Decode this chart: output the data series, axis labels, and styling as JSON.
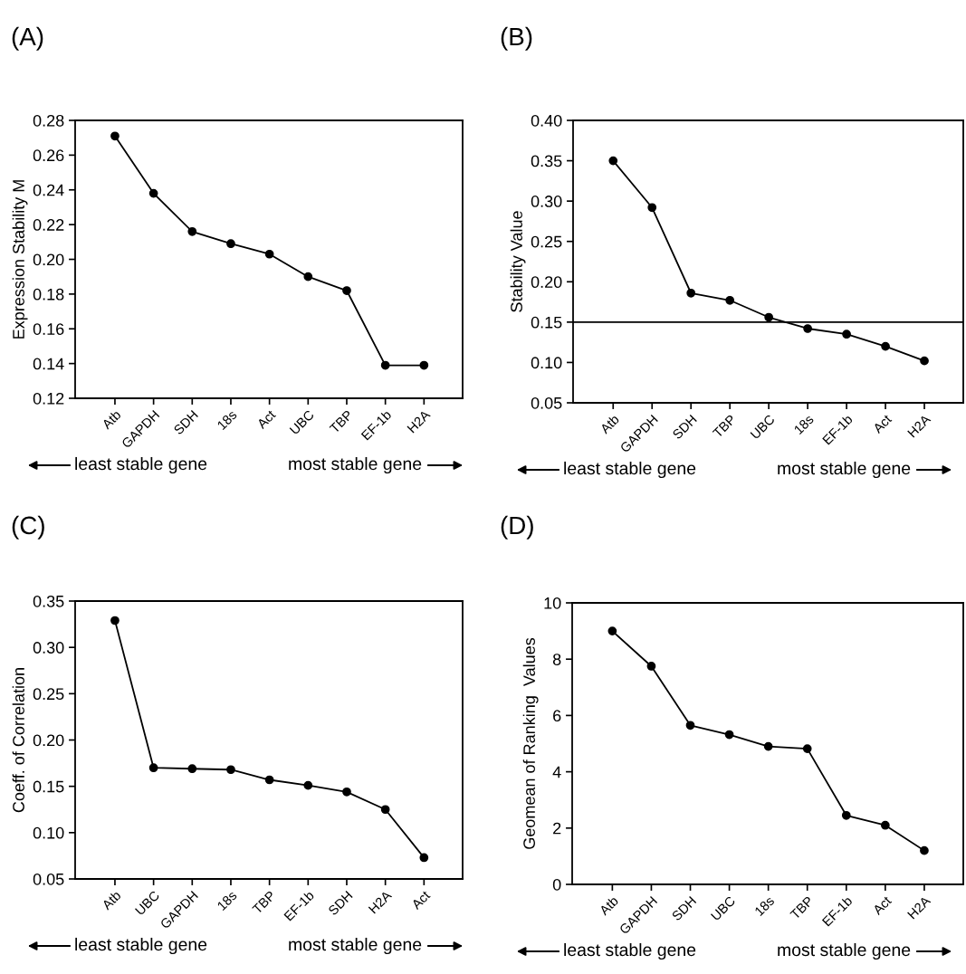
{
  "chart_data": [
    {
      "type": "line",
      "ylabel": "Expression Stability M",
      "annotations": [
        "(A)",
        "least stable gene",
        "most stable gene"
      ],
      "categories": [
        "Atb",
        "GAPDH",
        "SDH",
        "18s",
        "Act",
        "UBC",
        "TBP",
        "EF-1b",
        "H2A"
      ],
      "series": [
        {
          "color": "#000000",
          "values": [
            0.271,
            0.238,
            0.216,
            0.209,
            0.203,
            0.19,
            0.182,
            0.139,
            0.139
          ]
        }
      ],
      "ylim": [
        0.12,
        0.28
      ],
      "yticks": [
        {
          "value": 0.12,
          "label": "0.12"
        },
        {
          "value": 0.14,
          "label": "0.14"
        },
        {
          "value": 0.16,
          "label": "0.16"
        },
        {
          "value": 0.18,
          "label": "0.18"
        },
        {
          "value": 0.2,
          "label": "0.20"
        },
        {
          "value": 0.22,
          "label": "0.22"
        },
        {
          "value": 0.24,
          "label": "0.24"
        },
        {
          "value": 0.26,
          "label": "0.26"
        },
        {
          "value": 0.28,
          "label": "0.28"
        }
      ],
      "marker": "circle",
      "line_style": "solid",
      "grid": false
    },
    {
      "type": "line",
      "ylabel": "Stability Value",
      "annotations": [
        "(B)",
        "least stable gene",
        "most stable gene"
      ],
      "categories": [
        "Atb",
        "GAPDH",
        "SDH",
        "TBP",
        "UBC",
        "18s",
        "EF-1b",
        "Act",
        "H2A"
      ],
      "series": [
        {
          "color": "#000000",
          "values": [
            0.35,
            0.292,
            0.186,
            0.177,
            0.156,
            0.142,
            0.135,
            0.12,
            0.102
          ]
        }
      ],
      "ylim": [
        0.05,
        0.4
      ],
      "yticks": [
        {
          "value": 0.05,
          "label": "0.05"
        },
        {
          "value": 0.1,
          "label": "0.10"
        },
        {
          "value": 0.15,
          "label": "0.15"
        },
        {
          "value": 0.2,
          "label": "0.20"
        },
        {
          "value": 0.25,
          "label": "0.25"
        },
        {
          "value": 0.3,
          "label": "0.30"
        },
        {
          "value": 0.35,
          "label": "0.35"
        },
        {
          "value": 0.4,
          "label": "0.40"
        }
      ],
      "ref_lines": [
        {
          "axis": "y",
          "value": 0.15,
          "color": "#000000",
          "line_style": "solid"
        }
      ],
      "marker": "circle",
      "line_style": "solid",
      "grid": false
    },
    {
      "type": "line",
      "ylabel": "Coeff. of Correlation",
      "annotations": [
        "(C)",
        "least stable gene",
        "most stable gene"
      ],
      "categories": [
        "Atb",
        "UBC",
        "GAPDH",
        "18s",
        "TBP",
        "EF-1b",
        "SDH",
        "H2A",
        "Act"
      ],
      "series": [
        {
          "color": "#000000",
          "values": [
            0.329,
            0.17,
            0.169,
            0.168,
            0.157,
            0.151,
            0.144,
            0.125,
            0.073
          ]
        }
      ],
      "ylim": [
        0.05,
        0.35
      ],
      "yticks": [
        {
          "value": 0.05,
          "label": "0.05"
        },
        {
          "value": 0.1,
          "label": "0.10"
        },
        {
          "value": 0.15,
          "label": "0.15"
        },
        {
          "value": 0.2,
          "label": "0.20"
        },
        {
          "value": 0.25,
          "label": "0.25"
        },
        {
          "value": 0.3,
          "label": "0.30"
        },
        {
          "value": 0.35,
          "label": "0.35"
        }
      ],
      "marker": "circle",
      "line_style": "solid",
      "grid": false
    },
    {
      "type": "line",
      "ylabel": "Geomean of Ranking  Values",
      "annotations": [
        "(D)",
        "least stable gene",
        "most stable gene"
      ],
      "categories": [
        "Atb",
        "GAPDH",
        "SDH",
        "UBC",
        "18s",
        "TBP",
        "EF-1b",
        "Act",
        "H2A"
      ],
      "series": [
        {
          "color": "#000000",
          "values": [
            9.0,
            7.75,
            5.65,
            5.32,
            4.9,
            4.82,
            2.45,
            2.1,
            1.2
          ]
        }
      ],
      "ylim": [
        0,
        10
      ],
      "yticks": [
        0,
        2,
        4,
        6,
        8,
        10
      ],
      "marker": "circle",
      "line_style": "solid",
      "grid": false
    }
  ]
}
